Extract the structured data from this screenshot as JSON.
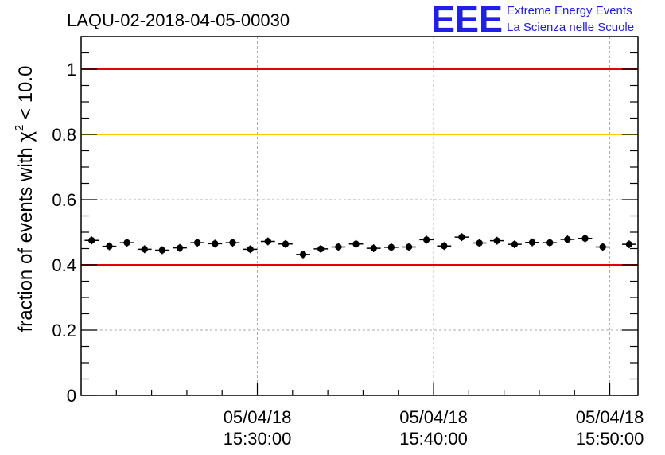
{
  "chart_data": {
    "type": "scatter",
    "title": "LAQU-02-2018-04-05-00030",
    "ylabel_parts": {
      "prefix": "fraction of events with ",
      "symbol": "χ",
      "superscript": "2",
      "suffix": " < 10.0"
    },
    "ylim": [
      0,
      1.1
    ],
    "y_ticks": [
      {
        "value": 0,
        "label": "0"
      },
      {
        "value": 0.2,
        "label": "0.2"
      },
      {
        "value": 0.4,
        "label": "0.4"
      },
      {
        "value": 0.6,
        "label": "0.6"
      },
      {
        "value": 0.8,
        "label": "0.8"
      },
      {
        "value": 1,
        "label": "1"
      }
    ],
    "x_unit": "minutes since 15:20:00",
    "xlim": [
      0,
      31.6
    ],
    "x_ticks": [
      {
        "value": 10,
        "date": "05/04/18",
        "time": "15:30:00"
      },
      {
        "value": 20,
        "date": "05/04/18",
        "time": "15:40:00"
      },
      {
        "value": 30,
        "date": "05/04/18",
        "time": "15:50:00"
      }
    ],
    "grid": true,
    "reference_lines": [
      {
        "value": 1.0,
        "color": "#e60000"
      },
      {
        "value": 0.8,
        "color": "#ffc800"
      },
      {
        "value": 0.4,
        "color": "#e60000"
      }
    ],
    "bin_half_width": 0.4,
    "y_error": 0.012,
    "x": [
      0.6,
      1.6,
      2.6,
      3.6,
      4.6,
      5.6,
      6.6,
      7.6,
      8.6,
      9.6,
      10.6,
      11.6,
      12.6,
      13.6,
      14.6,
      15.6,
      16.6,
      17.6,
      18.6,
      19.6,
      20.6,
      21.6,
      22.6,
      23.6,
      24.6,
      25.6,
      26.6,
      27.6,
      28.6,
      29.6,
      31.1
    ],
    "y": [
      0.475,
      0.457,
      0.468,
      0.448,
      0.445,
      0.452,
      0.468,
      0.465,
      0.468,
      0.448,
      0.472,
      0.464,
      0.432,
      0.449,
      0.455,
      0.464,
      0.451,
      0.454,
      0.455,
      0.477,
      0.458,
      0.485,
      0.467,
      0.474,
      0.463,
      0.469,
      0.468,
      0.478,
      0.481,
      0.455,
      0.463
    ],
    "logo": {
      "mark": "EEE",
      "line1": "Extreme Energy Events",
      "line2": "La Scienza nelle Scuole"
    }
  }
}
